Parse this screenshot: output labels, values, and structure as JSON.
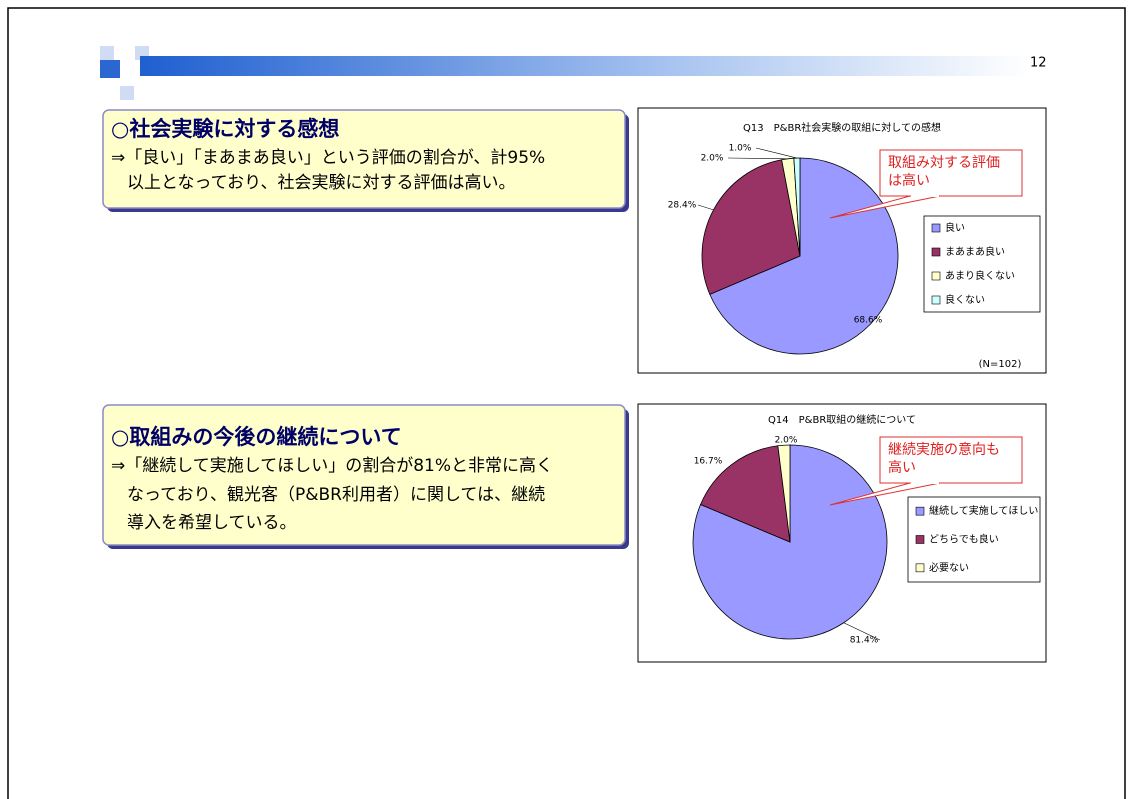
{
  "page_number": "12",
  "sections": [
    {
      "heading": "○社会実験に対する感想",
      "lines": [
        "⇒「良い」「まあまあ良い」という評価の割合が、計95%",
        "以上となっており、社会実験に対する評価は高い。"
      ],
      "chart": {
        "type": "pie",
        "title": "Q13　P&BR社会実験の取組に対しての感想",
        "categories": [
          "良い",
          "まあまあ良い",
          "あまり良くない",
          "良くない"
        ],
        "values": [
          68.6,
          28.4,
          2.0,
          1.0
        ],
        "value_labels": [
          "68.6%",
          "28.4%",
          "2.0%",
          "1.0%"
        ],
        "colors": [
          "#9999ff",
          "#993366",
          "#ffffcc",
          "#ccffff"
        ],
        "callout": [
          "取組み対する評価",
          "は高い"
        ],
        "note": "(N=102)"
      }
    },
    {
      "heading": "○取組みの今後の継続について",
      "lines": [
        "⇒「継続して実施してほしい」の割合が81%と非常に高く",
        "なっており、観光客（P&BR利用者）に関しては、継続",
        "導入を希望している。"
      ],
      "chart": {
        "type": "pie",
        "title": "Q14　P&BR取組の継続について",
        "categories": [
          "継続して実施してほしい",
          "どちらでも良い",
          "必要ない"
        ],
        "values": [
          81.4,
          16.7,
          2.0
        ],
        "value_labels": [
          "81.4%",
          "16.7%",
          "2.0%"
        ],
        "colors": [
          "#9999ff",
          "#993366",
          "#ffffcc"
        ],
        "callout": [
          "継続実施の意向も",
          "高い"
        ]
      }
    }
  ]
}
